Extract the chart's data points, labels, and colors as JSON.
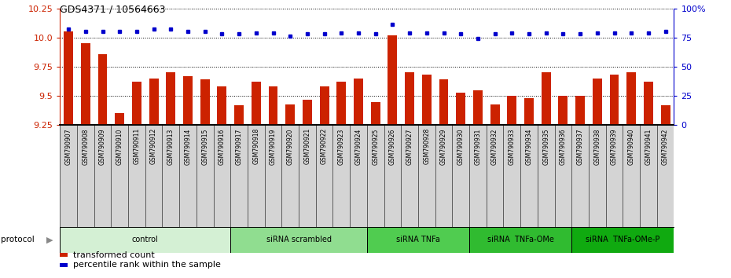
{
  "title": "GDS4371 / 10564663",
  "samples": [
    "GSM790907",
    "GSM790908",
    "GSM790909",
    "GSM790910",
    "GSM790911",
    "GSM790912",
    "GSM790913",
    "GSM790914",
    "GSM790915",
    "GSM790916",
    "GSM790917",
    "GSM790918",
    "GSM790919",
    "GSM790920",
    "GSM790921",
    "GSM790922",
    "GSM790923",
    "GSM790924",
    "GSM790925",
    "GSM790926",
    "GSM790927",
    "GSM790928",
    "GSM790929",
    "GSM790930",
    "GSM790931",
    "GSM790932",
    "GSM790933",
    "GSM790934",
    "GSM790935",
    "GSM790936",
    "GSM790937",
    "GSM790938",
    "GSM790939",
    "GSM790940",
    "GSM790941",
    "GSM790942"
  ],
  "red_values": [
    10.05,
    9.95,
    9.86,
    9.35,
    9.62,
    9.65,
    9.7,
    9.67,
    9.64,
    9.58,
    9.42,
    9.62,
    9.58,
    9.43,
    9.47,
    9.58,
    9.62,
    9.65,
    9.45,
    10.02,
    9.7,
    9.68,
    9.64,
    9.53,
    9.55,
    9.43,
    9.5,
    9.48,
    9.7,
    9.5,
    9.5,
    9.65,
    9.68,
    9.7,
    9.62,
    9.42
  ],
  "blue_values": [
    82,
    80,
    80,
    80,
    80,
    82,
    82,
    80,
    80,
    78,
    78,
    79,
    79,
    76,
    78,
    78,
    79,
    79,
    78,
    86,
    79,
    79,
    79,
    78,
    74,
    78,
    79,
    78,
    79,
    78,
    78,
    79,
    79,
    79,
    79,
    80
  ],
  "groups": [
    {
      "label": "control",
      "start": 0,
      "end": 9,
      "color": "#d4f0d4"
    },
    {
      "label": "siRNA scrambled",
      "start": 10,
      "end": 17,
      "color": "#90dd90"
    },
    {
      "label": "siRNA TNFa",
      "start": 18,
      "end": 23,
      "color": "#50cc50"
    },
    {
      "label": "siRNA  TNFa-OMe",
      "start": 24,
      "end": 29,
      "color": "#30bb30"
    },
    {
      "label": "siRNA  TNFa-OMe-P",
      "start": 30,
      "end": 35,
      "color": "#10aa10"
    }
  ],
  "ylim_left": [
    9.25,
    10.25
  ],
  "ylim_right": [
    0,
    100
  ],
  "yticks_left": [
    9.25,
    9.5,
    9.75,
    10.0,
    10.25
  ],
  "yticks_right": [
    0,
    25,
    50,
    75,
    100
  ],
  "bar_color": "#cc2200",
  "dot_color": "#0000cc",
  "legend_items": [
    {
      "label": "transformed count",
      "color": "#cc2200"
    },
    {
      "label": "percentile rank within the sample",
      "color": "#0000cc"
    }
  ]
}
